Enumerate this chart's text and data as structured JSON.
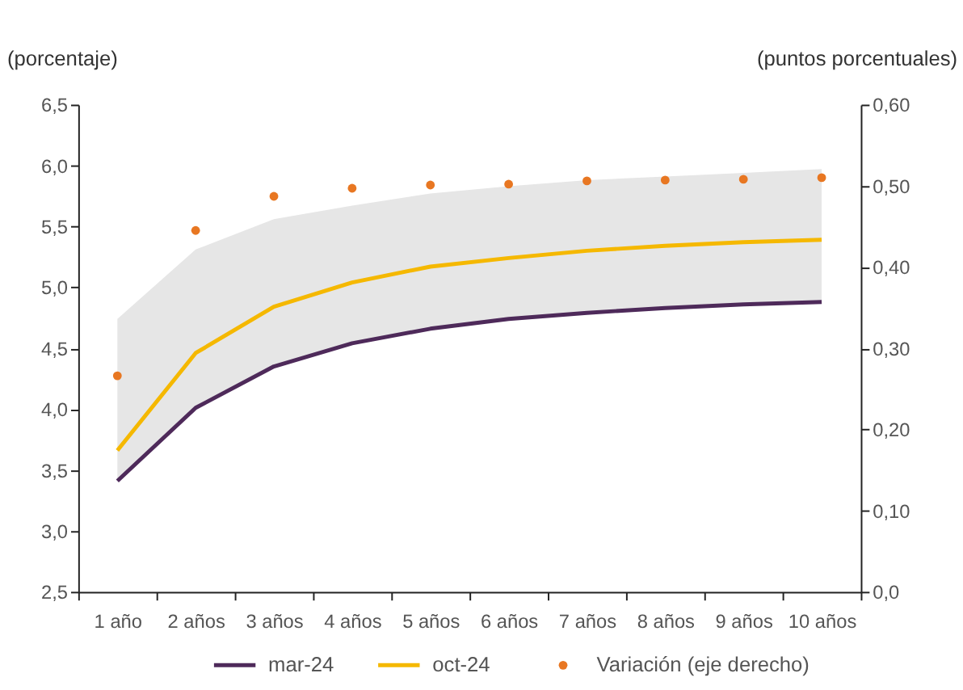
{
  "chart_data": {
    "type": "line",
    "ylabel": "(porcentaje)",
    "y2label": "(puntos porcentuales)",
    "categories": [
      "1 año",
      "2 años",
      "3 años",
      "4 años",
      "5 años",
      "6 años",
      "7 años",
      "8 años",
      "9 años",
      "10 años"
    ],
    "series": [
      {
        "name": "mar-24",
        "color": "#4e2a5a",
        "values": [
          3.41,
          4.01,
          4.35,
          4.54,
          4.66,
          4.74,
          4.79,
          4.83,
          4.86,
          4.88
        ],
        "lower": [
          3.41,
          4.01,
          4.35,
          4.54,
          4.66,
          4.74,
          4.79,
          4.83,
          4.86,
          4.88
        ],
        "upper": [
          4.74,
          5.31,
          5.56,
          5.67,
          5.77,
          5.83,
          5.88,
          5.91,
          5.94,
          5.97
        ]
      },
      {
        "name": "oct-24",
        "color": "#f5b800",
        "values": [
          3.66,
          4.46,
          4.84,
          5.04,
          5.17,
          5.24,
          5.3,
          5.34,
          5.37,
          5.39
        ]
      },
      {
        "name": "Variación (eje derecho)",
        "type": "scatter",
        "axis": "y2",
        "marker": "circle",
        "color": "#e87722",
        "values": [
          0.266,
          0.445,
          0.487,
          0.497,
          0.501,
          0.502,
          0.506,
          0.507,
          0.508,
          0.51
        ]
      }
    ],
    "ylim": [
      2.5,
      6.5
    ],
    "yticks": [
      {
        "value": 2.5,
        "label": "2,5"
      },
      {
        "value": 3,
        "label": "3,0"
      },
      {
        "value": 3.5,
        "label": "3,5"
      },
      {
        "value": 4,
        "label": "4,0"
      },
      {
        "value": 4.5,
        "label": "4,5"
      },
      {
        "value": 5,
        "label": "5,0"
      },
      {
        "value": 5.5,
        "label": "5,5"
      },
      {
        "value": 6,
        "label": "6,0"
      },
      {
        "value": 6.5,
        "label": "6,5"
      }
    ],
    "y2lim": [
      0,
      0.6
    ],
    "y2ticks": [
      {
        "value": 0,
        "label": "0,0"
      },
      {
        "value": 0.1,
        "label": "0,10"
      },
      {
        "value": 0.2,
        "label": "0,20"
      },
      {
        "value": 0.3,
        "label": "0,30"
      },
      {
        "value": 0.4,
        "label": "0,40"
      },
      {
        "value": 0.5,
        "label": "0,50"
      },
      {
        "value": 0.6,
        "label": "0,60"
      }
    ],
    "grid": false,
    "legend": "bottom",
    "line_style": "solid"
  }
}
